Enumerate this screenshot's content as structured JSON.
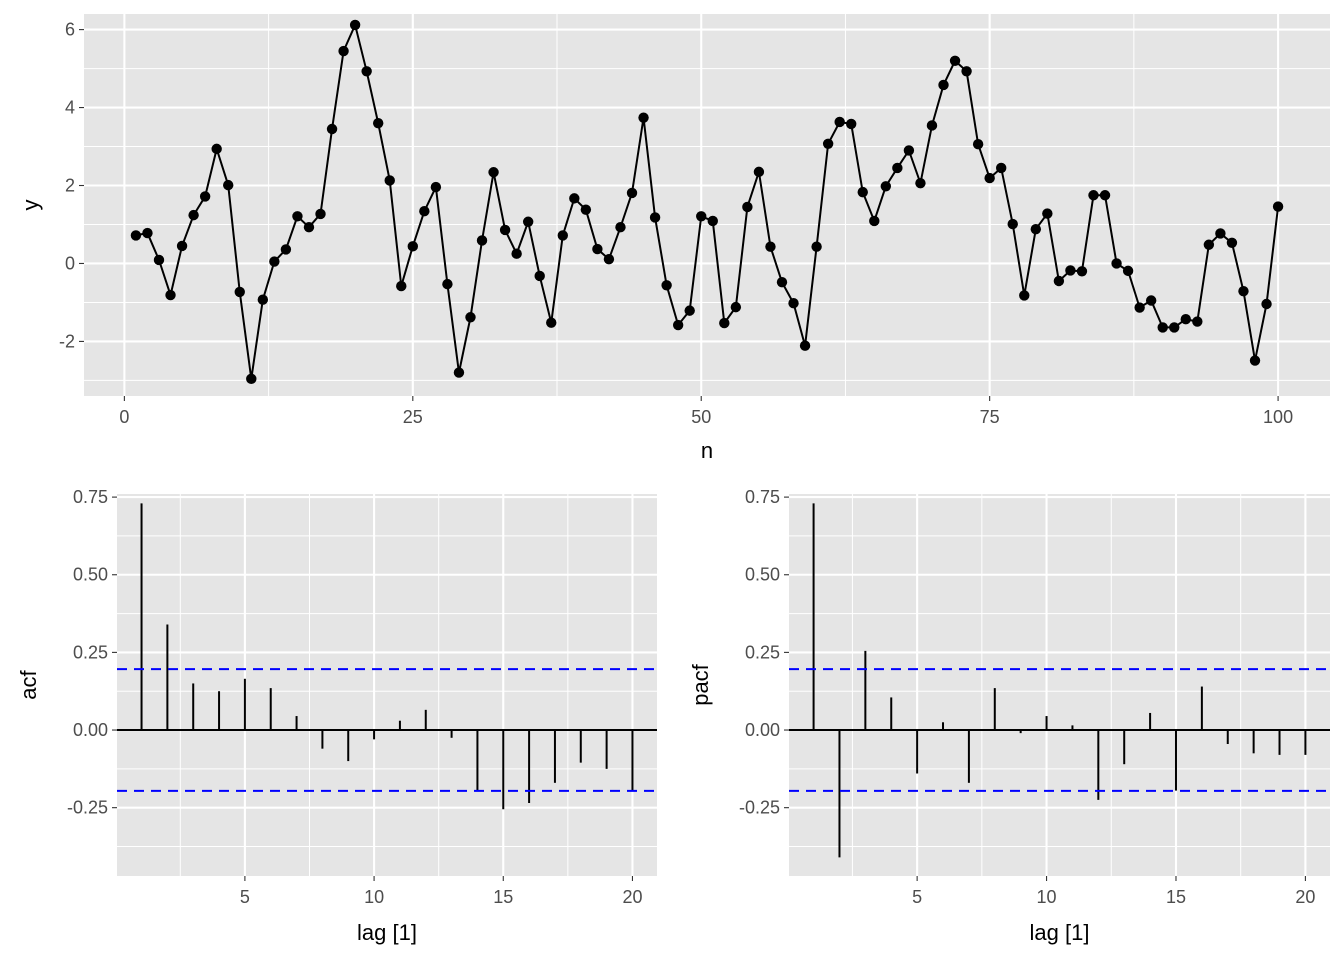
{
  "chart_data": [
    {
      "type": "line",
      "id": "series",
      "xlabel": "n",
      "ylabel": "y",
      "xlim": [
        -3.5,
        104.5
      ],
      "ylim": [
        -3.4,
        6.4
      ],
      "x_ticks": [
        0,
        25,
        50,
        75,
        100
      ],
      "y_ticks": [
        -2,
        0,
        2,
        4,
        6
      ],
      "x": [
        1,
        2,
        3,
        4,
        5,
        6,
        7,
        8,
        9,
        10,
        11,
        12,
        13,
        14,
        15,
        16,
        17,
        18,
        19,
        20,
        21,
        22,
        23,
        24,
        25,
        26,
        27,
        28,
        29,
        30,
        31,
        32,
        33,
        34,
        35,
        36,
        37,
        38,
        39,
        40,
        41,
        42,
        43,
        44,
        45,
        46,
        47,
        48,
        49,
        50,
        51,
        52,
        53,
        54,
        55,
        56,
        57,
        58,
        59,
        60,
        61,
        62,
        63,
        64,
        65,
        66,
        67,
        68,
        69,
        70,
        71,
        72,
        73,
        74,
        75,
        76,
        77,
        78,
        79,
        80,
        81,
        82,
        83,
        84,
        85,
        86,
        87,
        88,
        89,
        90,
        91,
        92,
        93,
        94,
        95,
        96,
        97,
        98,
        99,
        100
      ],
      "values": [
        0.72,
        0.78,
        0.09,
        -0.81,
        0.45,
        1.24,
        1.72,
        2.94,
        2.01,
        -0.73,
        -2.96,
        -0.93,
        0.05,
        0.36,
        1.21,
        0.93,
        1.27,
        3.45,
        5.45,
        6.12,
        4.93,
        3.6,
        2.13,
        -0.58,
        0.44,
        1.34,
        1.96,
        -0.53,
        -2.8,
        -1.38,
        0.59,
        2.34,
        0.86,
        0.25,
        1.07,
        -0.32,
        -1.52,
        0.72,
        1.67,
        1.38,
        0.37,
        0.11,
        0.93,
        1.81,
        3.74,
        1.18,
        -0.56,
        -1.58,
        -1.21,
        1.21,
        1.09,
        -1.53,
        -1.12,
        1.45,
        2.35,
        0.43,
        -0.48,
        -1.02,
        -2.11,
        0.43,
        3.07,
        3.63,
        3.58,
        1.83,
        1.09,
        1.98,
        2.45,
        2.9,
        2.06,
        3.54,
        4.58,
        5.2,
        4.93,
        3.06,
        2.19,
        2.45,
        1.01,
        -0.82,
        0.88,
        1.28,
        -0.45,
        -0.18,
        -0.2,
        1.75,
        1.75,
        0.0,
        -0.19,
        -1.13,
        -0.95,
        -1.64,
        -1.64,
        -1.43,
        -1.49,
        0.48,
        0.77,
        0.53,
        -0.71,
        -2.49,
        -1.04,
        1.46
      ]
    },
    {
      "type": "bar",
      "id": "acf",
      "xlabel": "lag [1]",
      "ylabel": "acf",
      "xlim": [
        0.05,
        20.95
      ],
      "ylim": [
        -0.47,
        0.76
      ],
      "x_ticks": [
        5,
        10,
        15,
        20
      ],
      "y_ticks": [
        -0.25,
        0,
        0.25,
        0.5,
        0.75
      ],
      "y_tick_labels": [
        "-0.25",
        "0.00",
        "0.25",
        "0.50",
        "0.75"
      ],
      "categories": [
        1,
        2,
        3,
        4,
        5,
        6,
        7,
        8,
        9,
        10,
        11,
        12,
        13,
        14,
        15,
        16,
        17,
        18,
        19,
        20
      ],
      "values": [
        0.73,
        0.34,
        0.15,
        0.125,
        0.165,
        0.135,
        0.045,
        -0.06,
        -0.1,
        -0.03,
        0.03,
        0.065,
        -0.025,
        -0.195,
        -0.255,
        -0.235,
        -0.17,
        -0.105,
        -0.125,
        -0.195
      ],
      "ci": [
        -0.196,
        0.196
      ]
    },
    {
      "type": "bar",
      "id": "pacf",
      "xlabel": "lag [1]",
      "ylabel": "pacf",
      "xlim": [
        0.05,
        20.95
      ],
      "ylim": [
        -0.47,
        0.76
      ],
      "x_ticks": [
        5,
        10,
        15,
        20
      ],
      "y_ticks": [
        -0.25,
        0,
        0.25,
        0.5,
        0.75
      ],
      "y_tick_labels": [
        "-0.25",
        "0.00",
        "0.25",
        "0.50",
        "0.75"
      ],
      "categories": [
        1,
        2,
        3,
        4,
        5,
        6,
        7,
        8,
        9,
        10,
        11,
        12,
        13,
        14,
        15,
        16,
        17,
        18,
        19,
        20
      ],
      "values": [
        0.73,
        -0.41,
        0.255,
        0.105,
        -0.14,
        0.025,
        -0.17,
        0.135,
        -0.01,
        0.045,
        0.015,
        -0.225,
        -0.11,
        0.055,
        -0.195,
        0.14,
        -0.045,
        -0.075,
        -0.08,
        -0.08
      ],
      "ci": [
        -0.196,
        0.196
      ]
    }
  ]
}
